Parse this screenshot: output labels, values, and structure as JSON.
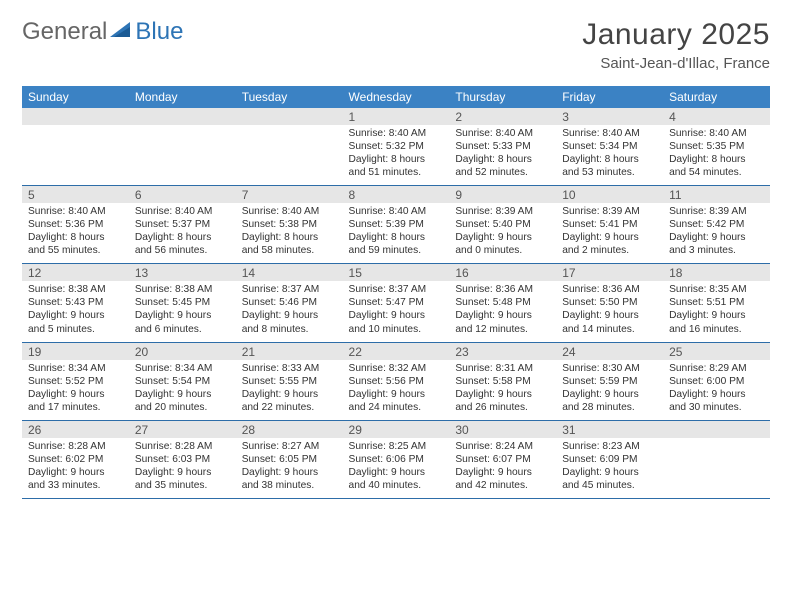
{
  "brand": {
    "part1": "General",
    "part2": "Blue"
  },
  "header": {
    "title": "January 2025",
    "location": "Saint-Jean-d'Illac, France"
  },
  "colors": {
    "header_bg": "#3b82c4",
    "header_text": "#ffffff",
    "daynum_bg": "#e6e6e6",
    "row_border": "#2d6da8",
    "logo_accent": "#2d74b5"
  },
  "dayHeaders": [
    "Sunday",
    "Monday",
    "Tuesday",
    "Wednesday",
    "Thursday",
    "Friday",
    "Saturday"
  ],
  "weeks": [
    [
      {
        "blank": true
      },
      {
        "blank": true
      },
      {
        "blank": true
      },
      {
        "num": "1",
        "sunrise": "8:40 AM",
        "sunset": "5:32 PM",
        "daylight_h": "8",
        "daylight_m": "51"
      },
      {
        "num": "2",
        "sunrise": "8:40 AM",
        "sunset": "5:33 PM",
        "daylight_h": "8",
        "daylight_m": "52"
      },
      {
        "num": "3",
        "sunrise": "8:40 AM",
        "sunset": "5:34 PM",
        "daylight_h": "8",
        "daylight_m": "53"
      },
      {
        "num": "4",
        "sunrise": "8:40 AM",
        "sunset": "5:35 PM",
        "daylight_h": "8",
        "daylight_m": "54"
      }
    ],
    [
      {
        "num": "5",
        "sunrise": "8:40 AM",
        "sunset": "5:36 PM",
        "daylight_h": "8",
        "daylight_m": "55"
      },
      {
        "num": "6",
        "sunrise": "8:40 AM",
        "sunset": "5:37 PM",
        "daylight_h": "8",
        "daylight_m": "56"
      },
      {
        "num": "7",
        "sunrise": "8:40 AM",
        "sunset": "5:38 PM",
        "daylight_h": "8",
        "daylight_m": "58"
      },
      {
        "num": "8",
        "sunrise": "8:40 AM",
        "sunset": "5:39 PM",
        "daylight_h": "8",
        "daylight_m": "59"
      },
      {
        "num": "9",
        "sunrise": "8:39 AM",
        "sunset": "5:40 PM",
        "daylight_h": "9",
        "daylight_m": "0"
      },
      {
        "num": "10",
        "sunrise": "8:39 AM",
        "sunset": "5:41 PM",
        "daylight_h": "9",
        "daylight_m": "2"
      },
      {
        "num": "11",
        "sunrise": "8:39 AM",
        "sunset": "5:42 PM",
        "daylight_h": "9",
        "daylight_m": "3"
      }
    ],
    [
      {
        "num": "12",
        "sunrise": "8:38 AM",
        "sunset": "5:43 PM",
        "daylight_h": "9",
        "daylight_m": "5"
      },
      {
        "num": "13",
        "sunrise": "8:38 AM",
        "sunset": "5:45 PM",
        "daylight_h": "9",
        "daylight_m": "6"
      },
      {
        "num": "14",
        "sunrise": "8:37 AM",
        "sunset": "5:46 PM",
        "daylight_h": "9",
        "daylight_m": "8"
      },
      {
        "num": "15",
        "sunrise": "8:37 AM",
        "sunset": "5:47 PM",
        "daylight_h": "9",
        "daylight_m": "10"
      },
      {
        "num": "16",
        "sunrise": "8:36 AM",
        "sunset": "5:48 PM",
        "daylight_h": "9",
        "daylight_m": "12"
      },
      {
        "num": "17",
        "sunrise": "8:36 AM",
        "sunset": "5:50 PM",
        "daylight_h": "9",
        "daylight_m": "14"
      },
      {
        "num": "18",
        "sunrise": "8:35 AM",
        "sunset": "5:51 PM",
        "daylight_h": "9",
        "daylight_m": "16"
      }
    ],
    [
      {
        "num": "19",
        "sunrise": "8:34 AM",
        "sunset": "5:52 PM",
        "daylight_h": "9",
        "daylight_m": "17"
      },
      {
        "num": "20",
        "sunrise": "8:34 AM",
        "sunset": "5:54 PM",
        "daylight_h": "9",
        "daylight_m": "20"
      },
      {
        "num": "21",
        "sunrise": "8:33 AM",
        "sunset": "5:55 PM",
        "daylight_h": "9",
        "daylight_m": "22"
      },
      {
        "num": "22",
        "sunrise": "8:32 AM",
        "sunset": "5:56 PM",
        "daylight_h": "9",
        "daylight_m": "24"
      },
      {
        "num": "23",
        "sunrise": "8:31 AM",
        "sunset": "5:58 PM",
        "daylight_h": "9",
        "daylight_m": "26"
      },
      {
        "num": "24",
        "sunrise": "8:30 AM",
        "sunset": "5:59 PM",
        "daylight_h": "9",
        "daylight_m": "28"
      },
      {
        "num": "25",
        "sunrise": "8:29 AM",
        "sunset": "6:00 PM",
        "daylight_h": "9",
        "daylight_m": "30"
      }
    ],
    [
      {
        "num": "26",
        "sunrise": "8:28 AM",
        "sunset": "6:02 PM",
        "daylight_h": "9",
        "daylight_m": "33"
      },
      {
        "num": "27",
        "sunrise": "8:28 AM",
        "sunset": "6:03 PM",
        "daylight_h": "9",
        "daylight_m": "35"
      },
      {
        "num": "28",
        "sunrise": "8:27 AM",
        "sunset": "6:05 PM",
        "daylight_h": "9",
        "daylight_m": "38"
      },
      {
        "num": "29",
        "sunrise": "8:25 AM",
        "sunset": "6:06 PM",
        "daylight_h": "9",
        "daylight_m": "40"
      },
      {
        "num": "30",
        "sunrise": "8:24 AM",
        "sunset": "6:07 PM",
        "daylight_h": "9",
        "daylight_m": "42"
      },
      {
        "num": "31",
        "sunrise": "8:23 AM",
        "sunset": "6:09 PM",
        "daylight_h": "9",
        "daylight_m": "45"
      },
      {
        "blank": true
      }
    ]
  ],
  "labels": {
    "sunrise": "Sunrise:",
    "sunset": "Sunset:",
    "daylight": "Daylight:",
    "hours": "hours",
    "and": "and",
    "minutes": "minutes."
  }
}
